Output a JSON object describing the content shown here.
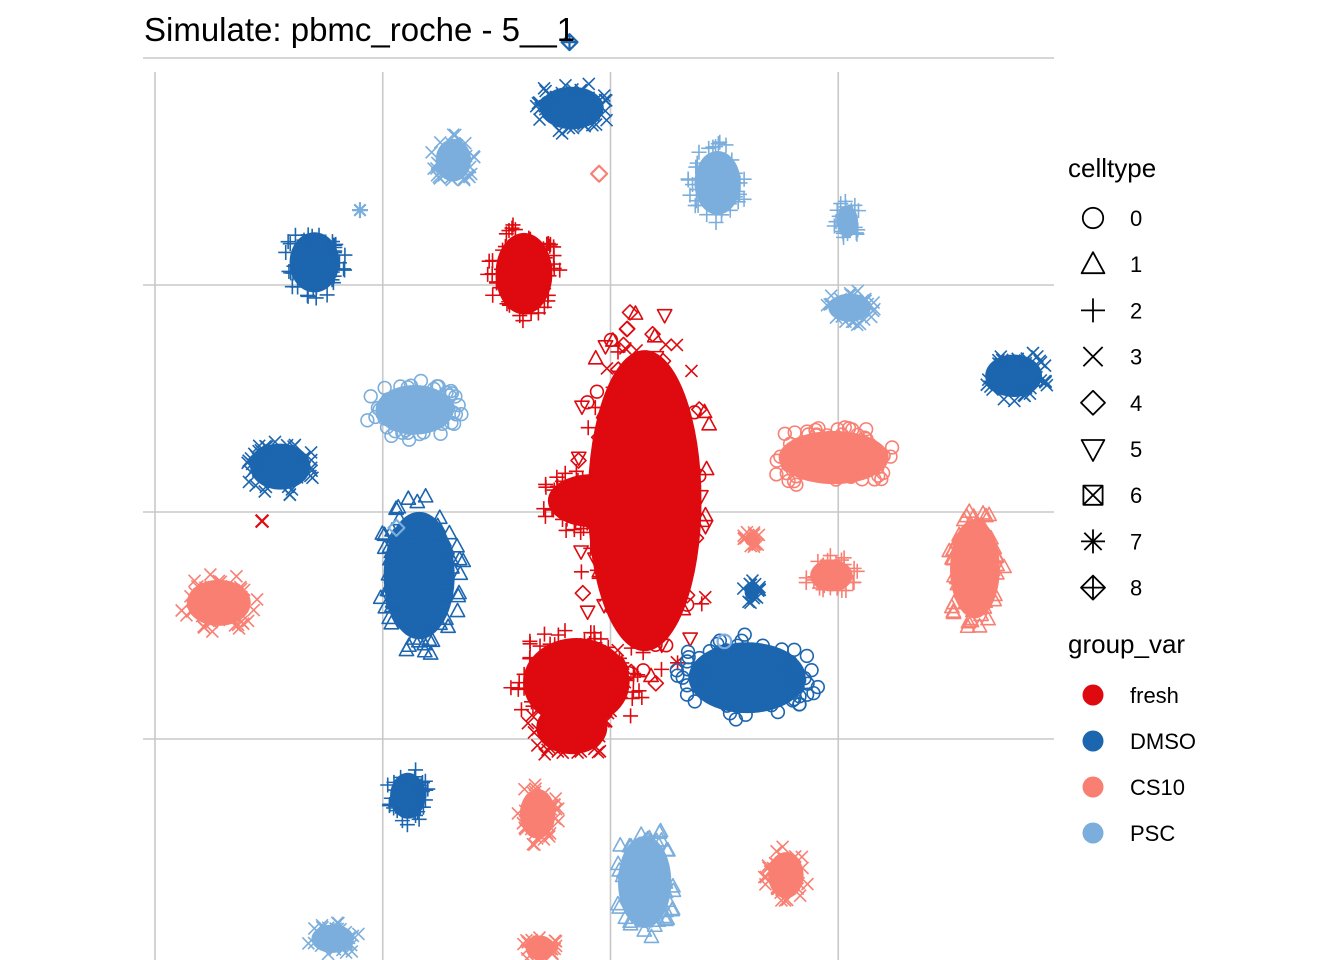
{
  "chart_data": {
    "type": "scatter",
    "title": "Simulate: pbmc_roche - 5__1",
    "xlabel": "",
    "ylabel": "",
    "xlim": [
      0,
      4
    ],
    "ylim": [
      0,
      4
    ],
    "grid": true,
    "axes_visible": false,
    "legend_placement": "right",
    "shape_legend": {
      "title": "celltype",
      "items": [
        {
          "label": "0",
          "shape": "circle"
        },
        {
          "label": "1",
          "shape": "triangle"
        },
        {
          "label": "2",
          "shape": "plus"
        },
        {
          "label": "3",
          "shape": "cross"
        },
        {
          "label": "4",
          "shape": "diamond"
        },
        {
          "label": "5",
          "shape": "triangle-down"
        },
        {
          "label": "6",
          "shape": "square-cross"
        },
        {
          "label": "7",
          "shape": "asterisk"
        },
        {
          "label": "8",
          "shape": "diamond-plus"
        }
      ]
    },
    "color_legend": {
      "title": "group_var",
      "items": [
        {
          "label": "fresh",
          "color": "#DE0A0F"
        },
        {
          "label": "DMSO",
          "color": "#1C65AF"
        },
        {
          "label": "CS10",
          "color": "#F97F73"
        },
        {
          "label": "PSC",
          "color": "#7BAEDC"
        }
      ]
    },
    "series": [
      {
        "group": "fresh",
        "celltype": "mixed",
        "cx": 2.15,
        "cy": 2.05,
        "rx": 0.32,
        "ry": 0.85
      },
      {
        "group": "fresh",
        "celltype": "2",
        "cx": 1.85,
        "cy": 1.25,
        "rx": 0.3,
        "ry": 0.25
      },
      {
        "group": "fresh",
        "celltype": "3",
        "cx": 1.83,
        "cy": 1.05,
        "rx": 0.2,
        "ry": 0.15
      },
      {
        "group": "fresh",
        "celltype": "2",
        "cx": 1.92,
        "cy": 2.05,
        "rx": 0.25,
        "ry": 0.15
      },
      {
        "group": "fresh",
        "celltype": "2",
        "cx": 1.62,
        "cy": 3.05,
        "rx": 0.16,
        "ry": 0.23
      },
      {
        "group": "DMSO",
        "celltype": "0",
        "cx": 2.6,
        "cy": 1.27,
        "rx": 0.33,
        "ry": 0.2
      },
      {
        "group": "DMSO",
        "celltype": "1",
        "cx": 1.16,
        "cy": 1.72,
        "rx": 0.2,
        "ry": 0.36
      },
      {
        "group": "DMSO",
        "celltype": "3",
        "cx": 0.55,
        "cy": 2.2,
        "rx": 0.17,
        "ry": 0.13
      },
      {
        "group": "DMSO",
        "celltype": "2",
        "cx": 0.7,
        "cy": 3.1,
        "rx": 0.14,
        "ry": 0.17
      },
      {
        "group": "DMSO",
        "celltype": "2",
        "cx": 1.11,
        "cy": 0.75,
        "rx": 0.1,
        "ry": 0.13
      },
      {
        "group": "DMSO",
        "celltype": "3",
        "cx": 1.83,
        "cy": 3.78,
        "rx": 0.18,
        "ry": 0.12
      },
      {
        "group": "DMSO",
        "celltype": "3",
        "cx": 3.77,
        "cy": 2.6,
        "rx": 0.16,
        "ry": 0.12
      },
      {
        "group": "DMSO",
        "celltype": "3",
        "cx": 2.62,
        "cy": 1.65,
        "rx": 0.04,
        "ry": 0.05
      },
      {
        "group": "CS10",
        "celltype": "0",
        "cx": 2.98,
        "cy": 2.24,
        "rx": 0.31,
        "ry": 0.15
      },
      {
        "group": "CS10",
        "celltype": "1",
        "cx": 3.6,
        "cy": 1.75,
        "rx": 0.14,
        "ry": 0.28
      },
      {
        "group": "CS10",
        "celltype": "3",
        "cx": 0.28,
        "cy": 1.6,
        "rx": 0.18,
        "ry": 0.13
      },
      {
        "group": "CS10",
        "celltype": "2",
        "cx": 2.97,
        "cy": 1.72,
        "rx": 0.12,
        "ry": 0.09
      },
      {
        "group": "CS10",
        "celltype": "3",
        "cx": 1.68,
        "cy": 0.67,
        "rx": 0.1,
        "ry": 0.14
      },
      {
        "group": "CS10",
        "celltype": "3",
        "cx": 2.77,
        "cy": 0.4,
        "rx": 0.1,
        "ry": 0.13
      },
      {
        "group": "CS10",
        "celltype": "3",
        "cx": 1.69,
        "cy": 0.08,
        "rx": 0.08,
        "ry": 0.07
      },
      {
        "group": "CS10",
        "celltype": "3",
        "cx": 2.62,
        "cy": 1.88,
        "rx": 0.04,
        "ry": 0.04
      },
      {
        "group": "PSC",
        "celltype": "0",
        "cx": 1.14,
        "cy": 2.45,
        "rx": 0.22,
        "ry": 0.14
      },
      {
        "group": "PSC",
        "celltype": "1",
        "cx": 2.15,
        "cy": 0.37,
        "rx": 0.15,
        "ry": 0.26
      },
      {
        "group": "PSC",
        "celltype": "3",
        "cx": 1.31,
        "cy": 3.55,
        "rx": 0.1,
        "ry": 0.12
      },
      {
        "group": "PSC",
        "celltype": "2",
        "cx": 2.47,
        "cy": 3.45,
        "rx": 0.13,
        "ry": 0.18
      },
      {
        "group": "PSC",
        "celltype": "2",
        "cx": 3.04,
        "cy": 3.28,
        "rx": 0.06,
        "ry": 0.09
      },
      {
        "group": "PSC",
        "celltype": "3",
        "cx": 3.05,
        "cy": 2.9,
        "rx": 0.12,
        "ry": 0.08
      },
      {
        "group": "PSC",
        "celltype": "3",
        "cx": 0.78,
        "cy": 0.12,
        "rx": 0.12,
        "ry": 0.08
      }
    ],
    "singletons": [
      {
        "group": "DMSO",
        "celltype": "8",
        "x": 1.82,
        "y": 4.07
      },
      {
        "group": "CS10",
        "celltype": "4",
        "x": 1.95,
        "y": 3.49
      },
      {
        "group": "PSC",
        "celltype": "7",
        "x": 0.9,
        "y": 3.33
      },
      {
        "group": "PSC",
        "celltype": "4",
        "x": 1.06,
        "y": 1.93
      },
      {
        "group": "PSC",
        "celltype": "0",
        "x": 2.5,
        "y": 1.43
      },
      {
        "group": "fresh",
        "celltype": "3",
        "x": 0.47,
        "y": 1.96
      },
      {
        "group": "fresh",
        "celltype": "4",
        "x": 2.3,
        "y": 2.03
      }
    ]
  }
}
